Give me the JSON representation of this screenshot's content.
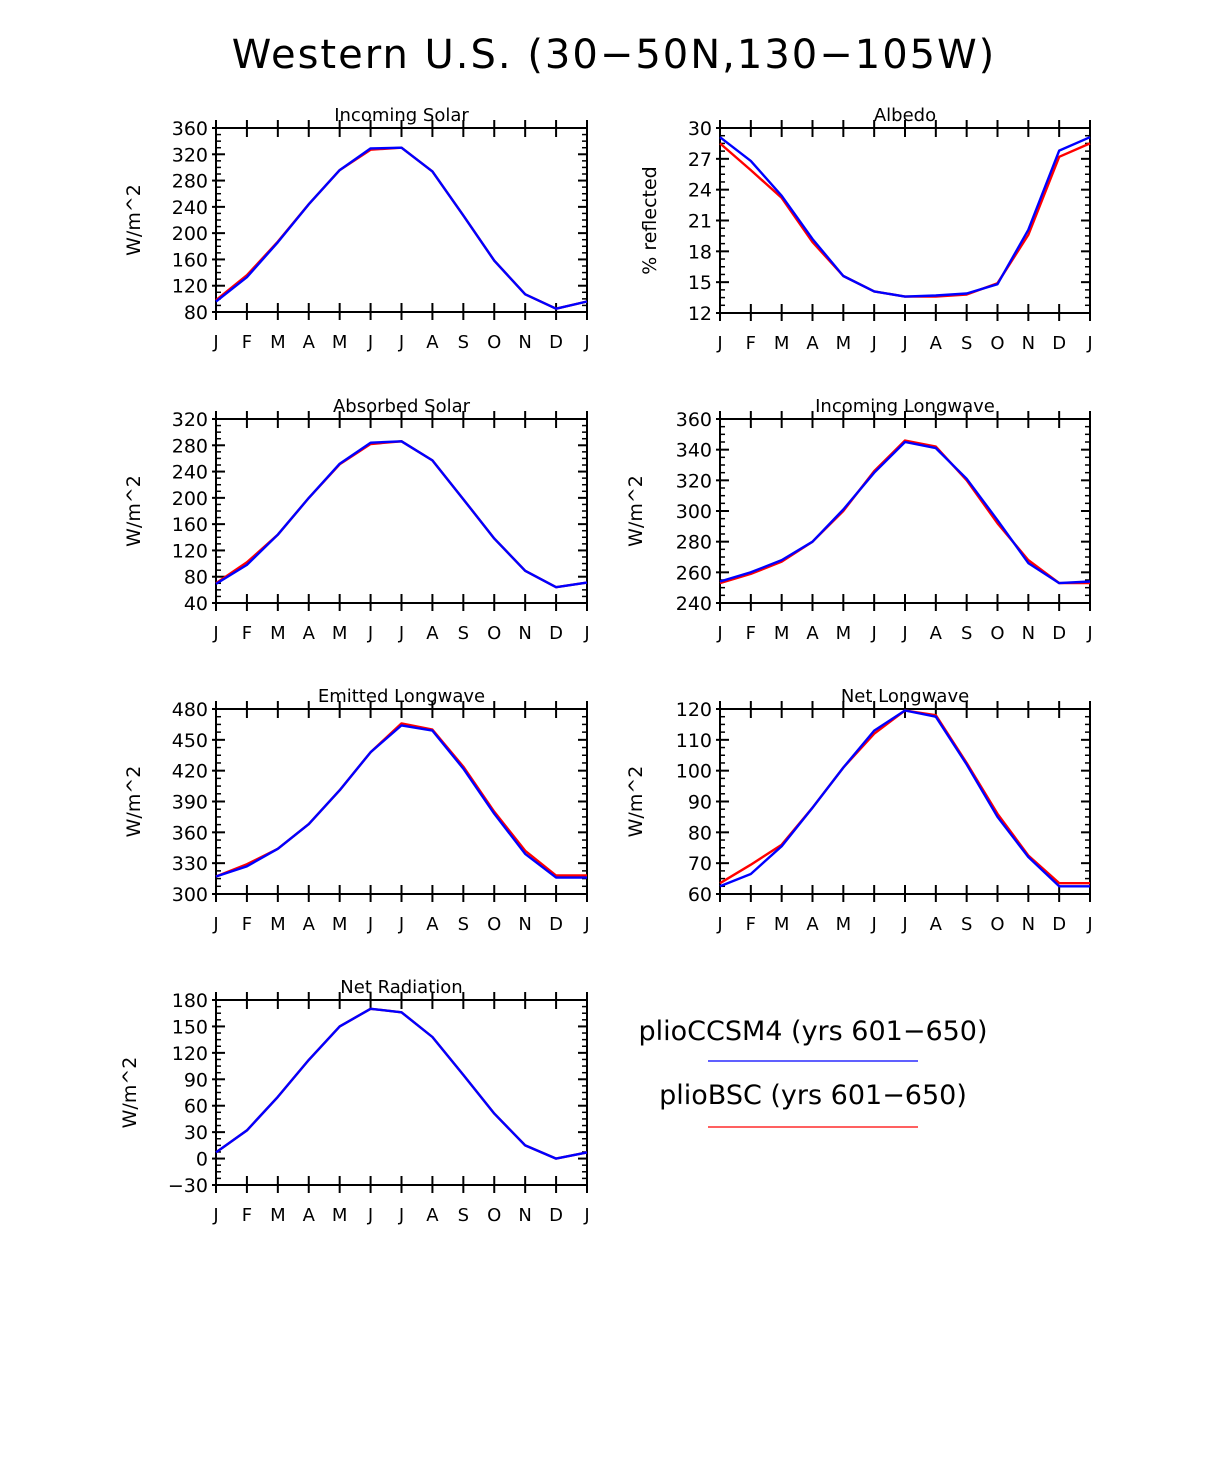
{
  "figure_title": "Western U.S. (30−50N,130−105W)",
  "colors": {
    "series_a": "#0000ff",
    "series_b": "#ff0000",
    "axis": "#000000"
  },
  "legend": [
    {
      "label": "plioCCSM4 (yrs 601−650)",
      "color": "#0000ff"
    },
    {
      "label": "plioBSC (yrs 601−650)",
      "color": "#ff0000"
    }
  ],
  "chart_data": [
    {
      "type": "line",
      "title": "Incoming Solar",
      "ylabel": "W/m^2",
      "categories": [
        "J",
        "F",
        "M",
        "A",
        "M",
        "J",
        "J",
        "A",
        "S",
        "O",
        "N",
        "D",
        "J"
      ],
      "ylim": [
        80,
        360
      ],
      "yticks": [
        80,
        120,
        160,
        200,
        240,
        280,
        320,
        360
      ],
      "series": [
        {
          "name": "plioCCSM4 (yrs 601−650)",
          "values": [
            96,
            133,
            186,
            244,
            296,
            329,
            330,
            294,
            227,
            158,
            107,
            85,
            96
          ]
        },
        {
          "name": "plioBSC (yrs 601−650)",
          "values": [
            98,
            136,
            187,
            244,
            296,
            327,
            330,
            294,
            227,
            158,
            107,
            85,
            96
          ]
        }
      ]
    },
    {
      "type": "line",
      "title": "Albedo",
      "ylabel": "% reflected",
      "categories": [
        "J",
        "F",
        "M",
        "A",
        "M",
        "J",
        "J",
        "A",
        "S",
        "O",
        "N",
        "D",
        "J"
      ],
      "ylim": [
        12,
        30
      ],
      "yticks": [
        12,
        15,
        18,
        21,
        24,
        27,
        30
      ],
      "series": [
        {
          "name": "plioCCSM4 (yrs 601−650)",
          "values": [
            29.1,
            26.8,
            23.4,
            19.2,
            15.6,
            14.1,
            13.6,
            13.7,
            13.9,
            14.8,
            20.1,
            27.8,
            29.1
          ]
        },
        {
          "name": "plioBSC (yrs 601−650)",
          "values": [
            28.5,
            25.9,
            23.2,
            18.9,
            15.6,
            14.1,
            13.6,
            13.6,
            13.8,
            14.9,
            19.6,
            27.2,
            28.5
          ]
        }
      ]
    },
    {
      "type": "line",
      "title": "Absorbed Solar",
      "ylabel": "W/m^2",
      "categories": [
        "J",
        "F",
        "M",
        "A",
        "M",
        "J",
        "J",
        "A",
        "S",
        "O",
        "N",
        "D",
        "J"
      ],
      "ylim": [
        40,
        320
      ],
      "yticks": [
        40,
        80,
        120,
        160,
        200,
        240,
        280,
        320
      ],
      "series": [
        {
          "name": "plioCCSM4 (yrs 601−650)",
          "values": [
            69,
            98,
            144,
            200,
            252,
            284,
            286,
            257,
            198,
            138,
            89,
            64,
            71
          ]
        },
        {
          "name": "plioBSC (yrs 601−650)",
          "values": [
            70,
            102,
            144,
            200,
            251,
            282,
            286,
            257,
            198,
            138,
            89,
            64,
            71
          ]
        }
      ]
    },
    {
      "type": "line",
      "title": "Incoming Longwave",
      "ylabel": "W/m^2",
      "categories": [
        "J",
        "F",
        "M",
        "A",
        "M",
        "J",
        "J",
        "A",
        "S",
        "O",
        "N",
        "D",
        "J"
      ],
      "ylim": [
        240,
        360
      ],
      "yticks": [
        240,
        260,
        280,
        300,
        320,
        340,
        360
      ],
      "series": [
        {
          "name": "plioCCSM4 (yrs 601−650)",
          "values": [
            254,
            260,
            268,
            280,
            301,
            325,
            345,
            341,
            321,
            294,
            266,
            253,
            254
          ]
        },
        {
          "name": "plioBSC (yrs 601−650)",
          "values": [
            253,
            259,
            267,
            280,
            300,
            326,
            346,
            342,
            320,
            292,
            268,
            253,
            253
          ]
        }
      ]
    },
    {
      "type": "line",
      "title": "Emitted Longwave",
      "ylabel": "W/m^2",
      "categories": [
        "J",
        "F",
        "M",
        "A",
        "M",
        "J",
        "J",
        "A",
        "S",
        "O",
        "N",
        "D",
        "J"
      ],
      "ylim": [
        300,
        480
      ],
      "yticks": [
        300,
        330,
        360,
        390,
        420,
        450,
        480
      ],
      "series": [
        {
          "name": "plioCCSM4 (yrs 601−650)",
          "values": [
            317,
            327,
            344,
            368,
            401,
            438,
            464,
            459,
            422,
            378,
            339,
            316,
            316
          ]
        },
        {
          "name": "plioBSC (yrs 601−650)",
          "values": [
            317,
            329,
            344,
            368,
            401,
            438,
            466,
            460,
            424,
            380,
            342,
            318,
            318
          ]
        }
      ]
    },
    {
      "type": "line",
      "title": "Net Longwave",
      "ylabel": "W/m^2",
      "categories": [
        "J",
        "F",
        "M",
        "A",
        "M",
        "J",
        "J",
        "A",
        "S",
        "O",
        "N",
        "D",
        "J"
      ],
      "ylim": [
        60,
        120
      ],
      "yticks": [
        60,
        70,
        80,
        90,
        100,
        110,
        120
      ],
      "series": [
        {
          "name": "plioCCSM4 (yrs 601−650)",
          "values": [
            62.5,
            66.5,
            75.5,
            88,
            101,
            113,
            119.5,
            117.5,
            102,
            85,
            72,
            62.5,
            62.5
          ]
        },
        {
          "name": "plioBSC (yrs 601−650)",
          "values": [
            63.5,
            69.5,
            76,
            88,
            101,
            112,
            119.5,
            118,
            102.5,
            86,
            72.5,
            63.5,
            63.5
          ]
        }
      ]
    },
    {
      "type": "line",
      "title": "Net Radiation",
      "ylabel": "W/m^2",
      "categories": [
        "J",
        "F",
        "M",
        "A",
        "M",
        "J",
        "J",
        "A",
        "S",
        "O",
        "N",
        "D",
        "J"
      ],
      "ylim": [
        -30,
        180
      ],
      "yticks": [
        -30,
        0,
        30,
        60,
        90,
        120,
        150,
        180
      ],
      "series": [
        {
          "name": "plioCCSM4 (yrs 601−650)",
          "values": [
            7,
            32,
            70,
            112,
            150,
            170,
            166,
            138,
            95,
            51,
            15,
            0,
            7
          ]
        },
        {
          "name": "plioBSC (yrs 601−650)",
          "values": [
            7,
            32,
            70,
            112,
            150,
            170,
            166,
            138,
            95,
            51,
            15,
            0,
            7
          ]
        }
      ]
    }
  ]
}
